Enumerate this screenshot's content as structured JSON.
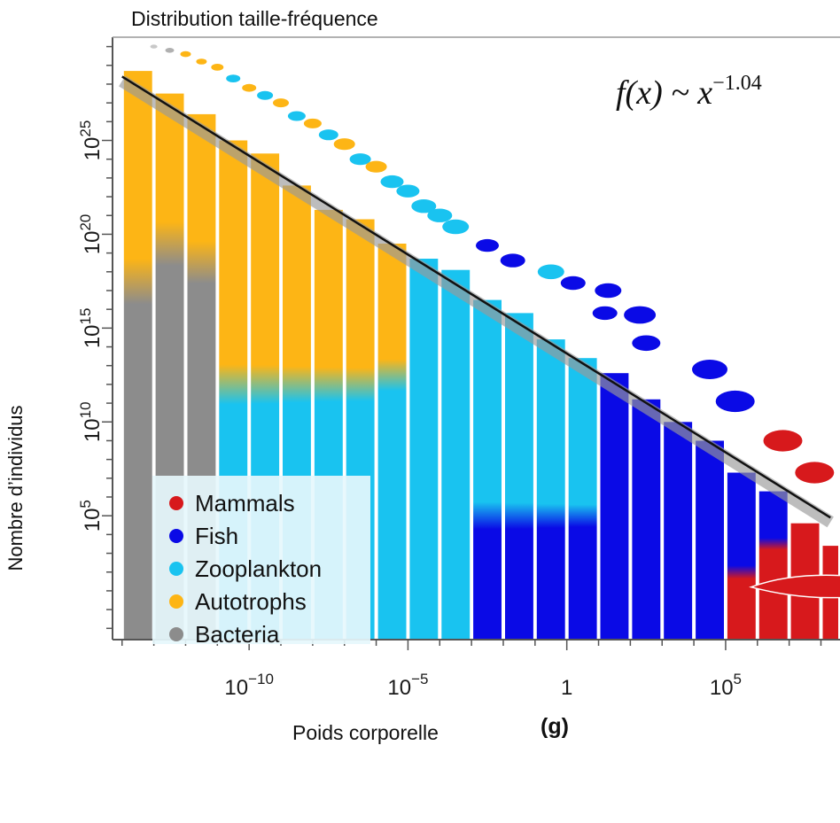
{
  "chart_data": {
    "type": "bar",
    "title": "Distribution taille-fréquence",
    "xlabel": "Poids corporelle",
    "ylabel": "Nombre d’individus",
    "x_unit": "(g)",
    "annotation": "f(x) ~ x^-1.04",
    "annotation_base": "f(x) ~ x",
    "annotation_exp": "−1.04",
    "x_scale": "log10",
    "y_scale": "log10",
    "xlim_exp": [
      -14.3,
      8.6
    ],
    "ylim_exp": [
      -1.6,
      30.5
    ],
    "x_tick_exps": [
      -10,
      -5,
      0,
      5
    ],
    "x_tick_labels": [
      "10",
      "10",
      "1",
      "10"
    ],
    "x_tick_label_exps": [
      "−10",
      "−5",
      "",
      "5"
    ],
    "y_tick_exps": [
      5,
      10,
      15,
      20,
      25
    ],
    "y_tick_labels": [
      "10",
      "10",
      "10",
      "10",
      "10"
    ],
    "y_tick_label_exps": [
      "5",
      "10",
      "15",
      "20",
      "25"
    ],
    "fit_line": {
      "slope": -1.04,
      "x_exp": [
        -14,
        8.3
      ],
      "y_exp": [
        28.4,
        4.9
      ]
    },
    "series": [
      {
        "name": "Mammals",
        "color": "#d7191c"
      },
      {
        "name": "Fish",
        "color": "#0a0ae6"
      },
      {
        "name": "Zooplankton",
        "color": "#19c3f0"
      },
      {
        "name": "Autotrophs",
        "color": "#fdb515"
      },
      {
        "name": "Bacteria",
        "color": "#8c8c8c"
      }
    ],
    "bars": [
      {
        "x_from": -14,
        "x_to": -13,
        "y_exp": 28.7,
        "stack": [
          [
            "Bacteria",
            17.5
          ],
          [
            "Autotrophs",
            28.7
          ]
        ]
      },
      {
        "x_from": -13,
        "x_to": -12,
        "y_exp": 27.5,
        "stack": [
          [
            "Bacteria",
            19.5
          ],
          [
            "Autotrophs",
            27.5
          ]
        ]
      },
      {
        "x_from": -12,
        "x_to": -11,
        "y_exp": 26.4,
        "stack": [
          [
            "Bacteria",
            18.5
          ],
          [
            "Autotrophs",
            26.4
          ]
        ]
      },
      {
        "x_from": -11,
        "x_to": -10,
        "y_exp": 25.0,
        "stack": [
          [
            "Zooplankton",
            12.0
          ],
          [
            "Autotrophs",
            25.0
          ]
        ]
      },
      {
        "x_from": -10,
        "x_to": -9,
        "y_exp": 24.3,
        "stack": [
          [
            "Zooplankton",
            12.0
          ],
          [
            "Autotrophs",
            24.3
          ]
        ]
      },
      {
        "x_from": -9,
        "x_to": -8,
        "y_exp": 22.6,
        "stack": [
          [
            "Zooplankton",
            12.0
          ],
          [
            "Autotrophs",
            22.6
          ]
        ]
      },
      {
        "x_from": -8,
        "x_to": -7,
        "y_exp": 21.3,
        "stack": [
          [
            "Zooplankton",
            12.0
          ],
          [
            "Autotrophs",
            21.3
          ]
        ]
      },
      {
        "x_from": -7,
        "x_to": -6,
        "y_exp": 20.8,
        "stack": [
          [
            "Zooplankton",
            12.0
          ],
          [
            "Autotrophs",
            20.8
          ]
        ]
      },
      {
        "x_from": -6,
        "x_to": -5,
        "y_exp": 19.5,
        "stack": [
          [
            "Zooplankton",
            12.5
          ],
          [
            "Autotrophs",
            19.5
          ]
        ]
      },
      {
        "x_from": -5,
        "x_to": -4,
        "y_exp": 18.7,
        "stack": [
          [
            "Zooplankton",
            18.7
          ]
        ]
      },
      {
        "x_from": -4,
        "x_to": -3,
        "y_exp": 18.1,
        "stack": [
          [
            "Zooplankton",
            18.1
          ]
        ]
      },
      {
        "x_from": -3,
        "x_to": -2,
        "y_exp": 16.5,
        "stack": [
          [
            "Fish",
            5.0
          ],
          [
            "Zooplankton",
            16.5
          ]
        ]
      },
      {
        "x_from": -2,
        "x_to": -1,
        "y_exp": 15.8,
        "stack": [
          [
            "Fish",
            5.0
          ],
          [
            "Zooplankton",
            15.8
          ]
        ]
      },
      {
        "x_from": -1,
        "x_to": 0,
        "y_exp": 14.4,
        "stack": [
          [
            "Fish",
            5.0
          ],
          [
            "Zooplankton",
            14.4
          ]
        ]
      },
      {
        "x_from": 0,
        "x_to": 1,
        "y_exp": 13.4,
        "stack": [
          [
            "Fish",
            5.0
          ],
          [
            "Zooplankton",
            13.4
          ]
        ]
      },
      {
        "x_from": 1,
        "x_to": 2,
        "y_exp": 12.6,
        "stack": [
          [
            "Fish",
            12.6
          ]
        ]
      },
      {
        "x_from": 2,
        "x_to": 3,
        "y_exp": 11.2,
        "stack": [
          [
            "Fish",
            11.2
          ]
        ]
      },
      {
        "x_from": 3,
        "x_to": 4,
        "y_exp": 10.0,
        "stack": [
          [
            "Fish",
            10.0
          ]
        ]
      },
      {
        "x_from": 4,
        "x_to": 5,
        "y_exp": 9.0,
        "stack": [
          [
            "Fish",
            9.0
          ]
        ]
      },
      {
        "x_from": 5,
        "x_to": 6,
        "y_exp": 7.3,
        "stack": [
          [
            "Mammals",
            2.0
          ],
          [
            "Fish",
            7.3
          ]
        ]
      },
      {
        "x_from": 6,
        "x_to": 7,
        "y_exp": 6.3,
        "stack": [
          [
            "Mammals",
            3.5
          ],
          [
            "Fish",
            6.3
          ]
        ]
      },
      {
        "x_from": 7,
        "x_to": 8,
        "y_exp": 4.6,
        "stack": [
          [
            "Mammals",
            4.6
          ]
        ]
      },
      {
        "x_from": 8,
        "x_to": 8.6,
        "y_exp": 3.4,
        "stack": [
          [
            "Mammals",
            3.4
          ]
        ]
      }
    ],
    "legend_position": "lower-left"
  }
}
